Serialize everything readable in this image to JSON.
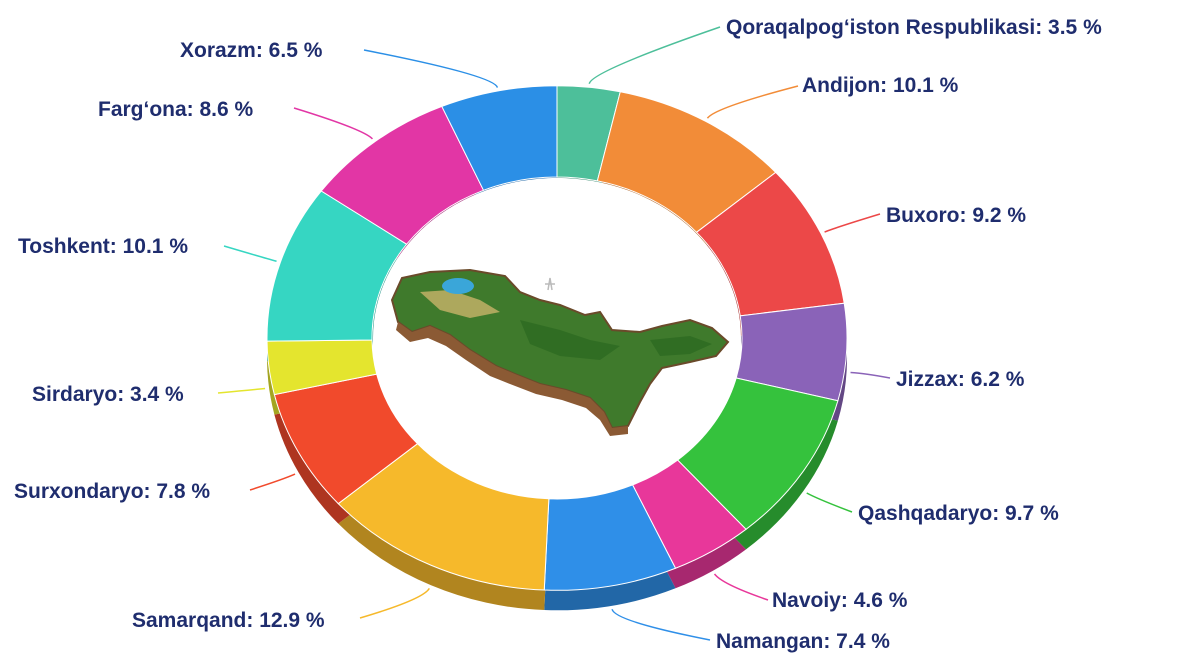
{
  "chart_data": {
    "type": "pie",
    "title": "",
    "center_image": "uzbekistan-map-illustration",
    "slices": [
      {
        "label": "Qoraqalpog‘iston Respublikasi: 3.5 %",
        "name": "Qoraqalpog‘iston Respublikasi",
        "value": 3.5,
        "color": "#4dbf9a"
      },
      {
        "label": "Andijon: 10.1 %",
        "name": "Andijon",
        "value": 10.1,
        "color": "#f28c38"
      },
      {
        "label": "Buxoro: 9.2 %",
        "name": "Buxoro",
        "value": 9.2,
        "color": "#ec4848"
      },
      {
        "label": "Jizzax: 6.2 %",
        "name": "Jizzax",
        "value": 6.2,
        "color": "#8a63b8"
      },
      {
        "label": "Qashqadaryo: 9.7 %",
        "name": "Qashqadaryo",
        "value": 9.7,
        "color": "#35c23d"
      },
      {
        "label": "Navoiy: 4.6 %",
        "name": "Navoiy",
        "value": 4.6,
        "color": "#e8379a"
      },
      {
        "label": "Namangan: 7.4 %",
        "name": "Namangan",
        "value": 7.4,
        "color": "#2f8fe8"
      },
      {
        "label": "Samarqand: 12.9 %",
        "name": "Samarqand",
        "value": 12.9,
        "color": "#f6b92b"
      },
      {
        "label": "Surxondaryo: 7.8 %",
        "name": "Surxondaryo",
        "value": 7.8,
        "color": "#f14a2c"
      },
      {
        "label": "Sirdaryo: 3.4 %",
        "name": "Sirdaryo",
        "value": 3.4,
        "color": "#e4e52e"
      },
      {
        "label": "Toshkent: 10.1 %",
        "name": "Toshkent",
        "value": 10.1,
        "color": "#36d6c2"
      },
      {
        "label": "Farg‘ona: 8.6 %",
        "name": "Farg‘ona",
        "value": 8.6,
        "color": "#e236a5"
      },
      {
        "label": "Xorazm: 6.5 %",
        "name": "Xorazm",
        "value": 6.5,
        "color": "#2b8fe6"
      }
    ]
  }
}
